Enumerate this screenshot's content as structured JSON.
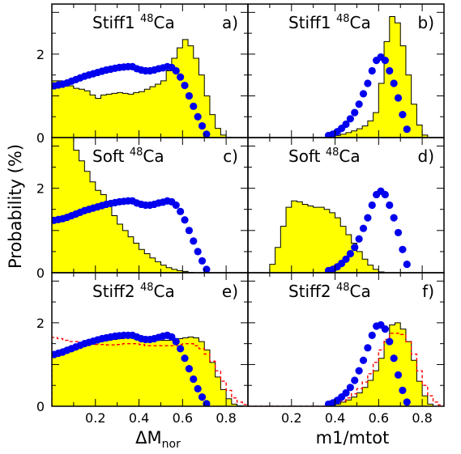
{
  "figure": {
    "ylabel": "Probability (%)",
    "xlabel_left_main": "ΔM",
    "xlabel_left_sub": "nor",
    "xlabel_right": "m1/mtot"
  },
  "chart_data": [
    {
      "panel": "a",
      "panel_label": "a)",
      "model": "Stiff1",
      "isotope_mass": "48",
      "isotope": "Ca",
      "type": "histogram+scatter",
      "x_variable": "dM_nor",
      "xlim": [
        0,
        0.9
      ],
      "ylim": [
        0,
        3.2
      ],
      "xticks": [],
      "yticks": [
        "0",
        "2"
      ],
      "histogram": {
        "x_start": 0.0,
        "bin_width": 0.025,
        "fill": "#ffff00",
        "values": [
          1.36,
          1.36,
          1.3,
          1.24,
          1.18,
          1.16,
          1.12,
          1.02,
          0.94,
          1.02,
          1.04,
          1.06,
          1.08,
          1.06,
          1.04,
          1.08,
          1.1,
          1.16,
          1.22,
          1.28,
          1.36,
          1.6,
          1.9,
          2.15,
          2.35,
          2.2,
          1.9,
          1.5,
          1.0,
          0.55,
          0.22,
          0.06,
          0.01
        ]
      },
      "points": {
        "color": "#0000ee",
        "x": [
          0.01,
          0.03,
          0.05,
          0.07,
          0.09,
          0.11,
          0.13,
          0.15,
          0.17,
          0.19,
          0.21,
          0.23,
          0.25,
          0.27,
          0.29,
          0.31,
          0.33,
          0.35,
          0.37,
          0.39,
          0.41,
          0.43,
          0.45,
          0.47,
          0.49,
          0.51,
          0.53,
          0.55,
          0.57,
          0.59,
          0.61,
          0.63,
          0.65,
          0.67,
          0.69,
          0.71
        ],
        "y": [
          1.24,
          1.26,
          1.28,
          1.31,
          1.35,
          1.39,
          1.43,
          1.47,
          1.5,
          1.53,
          1.56,
          1.59,
          1.62,
          1.64,
          1.66,
          1.68,
          1.69,
          1.7,
          1.7,
          1.65,
          1.62,
          1.6,
          1.6,
          1.62,
          1.65,
          1.67,
          1.7,
          1.68,
          1.6,
          1.45,
          1.25,
          1.0,
          0.75,
          0.5,
          0.28,
          0.08
        ]
      }
    },
    {
      "panel": "b",
      "panel_label": "b)",
      "model": "Stiff1",
      "isotope_mass": "48",
      "isotope": "Ca",
      "type": "histogram+scatter",
      "x_variable": "m1/mtot",
      "xlim": [
        0,
        0.9
      ],
      "ylim": [
        0,
        3.2
      ],
      "xticks": [],
      "yticks": [],
      "histogram": {
        "x_start": 0.0,
        "bin_width": 0.025,
        "fill": "#ffff00",
        "values": [
          0,
          0,
          0,
          0,
          0,
          0,
          0,
          0,
          0,
          0,
          0,
          0,
          0,
          0,
          0,
          0.02,
          0.05,
          0.08,
          0.12,
          0.16,
          0.21,
          0.28,
          0.4,
          0.6,
          1.3,
          2.3,
          2.9,
          2.75,
          2.2,
          1.5,
          0.8,
          0.3,
          0.06,
          0,
          0,
          0
        ]
      },
      "points": {
        "color": "#0000ee",
        "x": [
          0.37,
          0.39,
          0.41,
          0.43,
          0.45,
          0.47,
          0.49,
          0.51,
          0.53,
          0.55,
          0.57,
          0.59,
          0.61,
          0.63,
          0.65,
          0.67,
          0.69,
          0.71,
          0.73
        ],
        "y": [
          0.05,
          0.08,
          0.14,
          0.22,
          0.32,
          0.45,
          0.6,
          0.8,
          1.05,
          1.3,
          1.6,
          1.85,
          1.93,
          1.85,
          1.6,
          1.3,
          0.95,
          0.55,
          0.2
        ]
      }
    },
    {
      "panel": "c",
      "panel_label": "c)",
      "model": "Soft",
      "isotope_mass": "48",
      "isotope": "Ca",
      "type": "histogram+scatter",
      "x_variable": "dM_nor",
      "xlim": [
        0,
        0.9
      ],
      "ylim": [
        0,
        3.2
      ],
      "xticks": [],
      "yticks": [
        "0",
        "2"
      ],
      "histogram": {
        "x_start": 0.0,
        "bin_width": 0.025,
        "fill": "#ffff00",
        "values": [
          3.2,
          3.2,
          3.2,
          3.2,
          2.9,
          2.65,
          2.4,
          2.15,
          1.95,
          1.85,
          1.6,
          1.35,
          1.15,
          1.0,
          0.85,
          0.7,
          0.55,
          0.45,
          0.35,
          0.26,
          0.18,
          0.12,
          0.08,
          0.05,
          0.03,
          0.01
        ]
      },
      "points": {
        "color": "#0000ee",
        "x": [
          0.01,
          0.03,
          0.05,
          0.07,
          0.09,
          0.11,
          0.13,
          0.15,
          0.17,
          0.19,
          0.21,
          0.23,
          0.25,
          0.27,
          0.29,
          0.31,
          0.33,
          0.35,
          0.37,
          0.39,
          0.41,
          0.43,
          0.45,
          0.47,
          0.49,
          0.51,
          0.53,
          0.55,
          0.57,
          0.59,
          0.61,
          0.63,
          0.65,
          0.67,
          0.69,
          0.71
        ],
        "y": [
          1.24,
          1.26,
          1.28,
          1.31,
          1.35,
          1.39,
          1.43,
          1.47,
          1.5,
          1.53,
          1.56,
          1.59,
          1.62,
          1.64,
          1.66,
          1.68,
          1.69,
          1.7,
          1.7,
          1.65,
          1.62,
          1.6,
          1.6,
          1.62,
          1.65,
          1.67,
          1.7,
          1.68,
          1.6,
          1.45,
          1.25,
          1.0,
          0.75,
          0.5,
          0.28,
          0.08
        ]
      }
    },
    {
      "panel": "d",
      "panel_label": "d)",
      "model": "Soft",
      "isotope_mass": "48",
      "isotope": "Ca",
      "type": "histogram+scatter",
      "x_variable": "m1/mtot",
      "xlim": [
        0,
        0.9
      ],
      "ylim": [
        0,
        3.2
      ],
      "xticks": [],
      "yticks": [],
      "histogram": {
        "x_start": 0.0,
        "bin_width": 0.025,
        "fill": "#ffff00",
        "values": [
          0,
          0,
          0,
          0,
          0.2,
          0.6,
          1.1,
          1.55,
          1.7,
          1.68,
          1.62,
          1.58,
          1.55,
          1.55,
          1.5,
          1.42,
          1.3,
          1.1,
          0.9,
          0.7,
          0.5,
          0.32,
          0.18,
          0.08,
          0.02,
          0,
          0,
          0,
          0,
          0,
          0,
          0,
          0,
          0,
          0,
          0
        ]
      },
      "points": {
        "color": "#0000ee",
        "x": [
          0.37,
          0.39,
          0.41,
          0.43,
          0.45,
          0.47,
          0.49,
          0.51,
          0.53,
          0.55,
          0.57,
          0.59,
          0.61,
          0.63,
          0.65,
          0.67,
          0.69,
          0.71,
          0.73
        ],
        "y": [
          0.05,
          0.08,
          0.14,
          0.22,
          0.32,
          0.45,
          0.6,
          0.8,
          1.05,
          1.3,
          1.6,
          1.85,
          1.93,
          1.85,
          1.6,
          1.3,
          0.95,
          0.55,
          0.2
        ]
      }
    },
    {
      "panel": "e",
      "panel_label": "e)",
      "model": "Stiff2",
      "isotope_mass": "48",
      "isotope": "Ca",
      "type": "histogram+scatter+dashed",
      "x_variable": "dM_nor",
      "xlim": [
        0,
        0.9
      ],
      "ylim": [
        0,
        3.2
      ],
      "xticks": [
        "0.2",
        "0.4",
        "0.6",
        "0.8"
      ],
      "yticks": [
        "0",
        "2"
      ],
      "histogram": {
        "x_start": 0.0,
        "bin_width": 0.025,
        "fill": "#ffff00",
        "values": [
          1.28,
          1.34,
          1.38,
          1.42,
          1.44,
          1.47,
          1.5,
          1.52,
          1.55,
          1.57,
          1.58,
          1.6,
          1.62,
          1.64,
          1.65,
          1.66,
          1.66,
          1.65,
          1.63,
          1.6,
          1.58,
          1.58,
          1.6,
          1.62,
          1.64,
          1.66,
          1.64,
          1.55,
          1.35,
          1.05,
          0.7,
          0.4,
          0.18,
          0.05,
          0.01
        ]
      },
      "dashed": {
        "x_start": 0.0,
        "bin_width": 0.025,
        "color": "#ff0000",
        "values": [
          1.65,
          1.62,
          1.58,
          1.55,
          1.55,
          1.52,
          1.5,
          1.5,
          1.48,
          1.48,
          1.47,
          1.47,
          1.48,
          1.5,
          1.5,
          1.5,
          1.48,
          1.45,
          1.45,
          1.45,
          1.45,
          1.45,
          1.45,
          1.48,
          1.5,
          1.5,
          1.45,
          1.38,
          1.25,
          1.08,
          0.85,
          0.6,
          0.38,
          0.2,
          0.1,
          0.04,
          0.01
        ]
      },
      "points": {
        "color": "#0000ee",
        "x": [
          0.01,
          0.03,
          0.05,
          0.07,
          0.09,
          0.11,
          0.13,
          0.15,
          0.17,
          0.19,
          0.21,
          0.23,
          0.25,
          0.27,
          0.29,
          0.31,
          0.33,
          0.35,
          0.37,
          0.39,
          0.41,
          0.43,
          0.45,
          0.47,
          0.49,
          0.51,
          0.53,
          0.55,
          0.57,
          0.59,
          0.61,
          0.63,
          0.65,
          0.67,
          0.69,
          0.71
        ],
        "y": [
          1.24,
          1.27,
          1.3,
          1.34,
          1.38,
          1.42,
          1.46,
          1.5,
          1.53,
          1.56,
          1.59,
          1.62,
          1.64,
          1.66,
          1.68,
          1.69,
          1.7,
          1.7,
          1.7,
          1.66,
          1.62,
          1.6,
          1.6,
          1.62,
          1.65,
          1.68,
          1.7,
          1.66,
          1.55,
          1.38,
          1.15,
          0.9,
          0.65,
          0.42,
          0.22,
          0.06
        ]
      }
    },
    {
      "panel": "f",
      "panel_label": "f)",
      "model": "Stiff2",
      "isotope_mass": "48",
      "isotope": "Ca",
      "type": "histogram+scatter+dashed",
      "x_variable": "m1/mtot",
      "xlim": [
        0,
        0.9
      ],
      "ylim": [
        0,
        3.2
      ],
      "xticks": [
        "0.2",
        "0.4",
        "0.6",
        "0.8"
      ],
      "yticks": [],
      "histogram": {
        "x_start": 0.0,
        "bin_width": 0.025,
        "fill": "#ffff00",
        "values": [
          0,
          0,
          0,
          0,
          0,
          0,
          0,
          0,
          0,
          0,
          0,
          0,
          0,
          0,
          0,
          0.02,
          0.05,
          0.1,
          0.15,
          0.22,
          0.32,
          0.45,
          0.62,
          0.85,
          1.15,
          1.55,
          1.95,
          2.0,
          1.85,
          1.55,
          1.1,
          0.6,
          0.25,
          0.05,
          0,
          0
        ]
      },
      "dashed": {
        "x_start": 0.0,
        "bin_width": 0.025,
        "color": "#ff0000",
        "values": [
          0,
          0,
          0,
          0,
          0,
          0,
          0,
          0,
          0,
          0,
          0,
          0,
          0,
          0,
          0.02,
          0.04,
          0.08,
          0.13,
          0.2,
          0.3,
          0.42,
          0.58,
          0.78,
          1.05,
          1.35,
          1.6,
          1.75,
          1.75,
          1.72,
          1.55,
          1.25,
          0.85,
          0.5,
          0.25,
          0.1,
          0.03
        ]
      },
      "points": {
        "color": "#0000ee",
        "x": [
          0.37,
          0.39,
          0.41,
          0.43,
          0.45,
          0.47,
          0.49,
          0.51,
          0.53,
          0.55,
          0.57,
          0.59,
          0.61,
          0.63,
          0.65,
          0.67,
          0.69,
          0.71,
          0.73
        ],
        "y": [
          0.05,
          0.08,
          0.14,
          0.22,
          0.32,
          0.45,
          0.62,
          0.85,
          1.1,
          1.4,
          1.7,
          1.92,
          1.95,
          1.85,
          1.55,
          1.15,
          0.75,
          0.38,
          0.1
        ]
      }
    }
  ]
}
